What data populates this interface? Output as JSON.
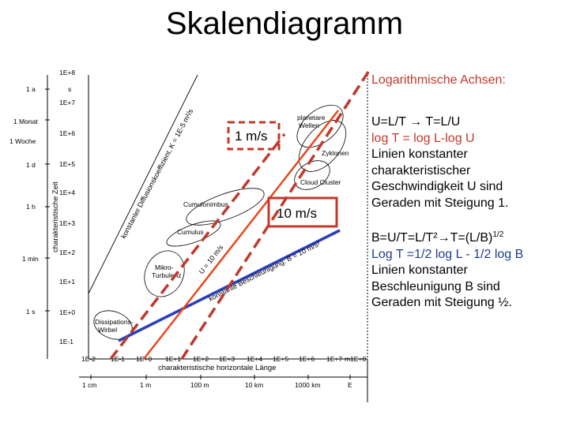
{
  "title": "Skalendiagramm",
  "right_panel": {
    "heading": "Logarithmische Achsen:",
    "block1": {
      "formula": "U=L/T → T=L/U",
      "log_formula": "log T = log L-log U",
      "lines": [
        "Linien konstanter",
        "charakteristischer",
        "Geschwindigkeit U sind",
        "Geraden mit Steigung 1."
      ]
    },
    "block2": {
      "formula": "B=U/T=L/T²→T=(L/B)",
      "formula_exp": "1/2",
      "log_formula": "Log T =1/2 log L - 1/2 log B",
      "lines": [
        "Linien konstanter",
        "Beschleunigung B sind",
        "Geraden mit Steigung ½."
      ]
    }
  },
  "diagram": {
    "y_axis_title": "charakteristische Zeit",
    "x_axis_title": "charakteristische horizontale Länge",
    "y_ticks": [
      "1E+8",
      "1E+7",
      "1E+6",
      "1E+5",
      "1E+4",
      "1E+3",
      "1E+2",
      "1E+1",
      "1E+0",
      "1E-1"
    ],
    "y_units_left": [
      {
        "label": "1 a",
        "at": "1E+7.5"
      },
      {
        "label": "s",
        "at": "1E+7.5b"
      },
      {
        "label": "1 Monat",
        "at": "1E+6.4"
      },
      {
        "label": "1 Woche",
        "at": "1E+5.8"
      },
      {
        "label": "1 d",
        "at": "1E+4.9"
      },
      {
        "label": "1 h",
        "at": "1E+3.6"
      },
      {
        "label": "1 min",
        "at": "1E+1.8"
      },
      {
        "label": "1 s",
        "at": "1E+0"
      }
    ],
    "x_ticks": [
      "1E-2",
      "1E-1",
      "1E+0",
      "1E+1",
      "1E+2",
      "1E+3",
      "1E+4",
      "1E+5",
      "1E+6",
      "1E+7",
      "m1E+8"
    ],
    "x_units_bottom": [
      "1 cm",
      "1 m",
      "100 m",
      "10 km",
      "1000 km",
      "E"
    ],
    "phenomena": [
      "planetare Wellen",
      "Zyklonen",
      "Cloud Cluster",
      "Cumulonimbus",
      "Cumulus",
      "Mikro- Turbulenz",
      "Dissipations- Wirbel"
    ],
    "boxes": [
      {
        "label": "1 m/s",
        "style": "dashed"
      },
      {
        "label": "10 m/s",
        "style": "solid"
      }
    ],
    "line_labels": {
      "diffusion": "konstanter Diffusionskoeffizient, K = 1E-5 m²/s",
      "velocity": "U = 10 m/s",
      "acceleration": "konstante Beschleunigung: B = 10 m/s²"
    }
  },
  "colors": {
    "red": "#c0392b",
    "blue": "#2b3fb8",
    "orange_line": "#e8481c"
  }
}
